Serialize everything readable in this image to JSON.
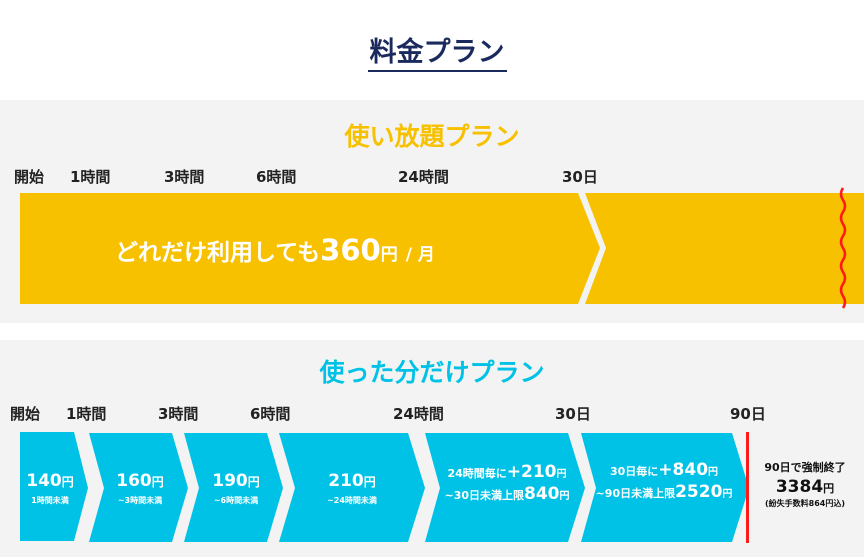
{
  "title": "料金プラン",
  "colors": {
    "navy": "#1b2a5c",
    "yellow": "#f7c100",
    "cyan": "#00c2e6",
    "red": "#ff1a1a",
    "bg": "#f3f3f3"
  },
  "unlimited": {
    "heading": "使い放題プラン",
    "timeline": [
      "開始",
      "1時間",
      "3時間",
      "6時間",
      "24時間",
      "30日"
    ],
    "text_main": "どれだけ利用しても",
    "price": "360",
    "yen": "円",
    "per": "/ 月"
  },
  "payg": {
    "heading": "使った分だけプラン",
    "timeline": [
      "開始",
      "1時間",
      "3時間",
      "6時間",
      "24時間",
      "30日",
      "90日"
    ],
    "steps": [
      {
        "price": "140",
        "yen": "円",
        "note": "1時間未満"
      },
      {
        "price": "160",
        "yen": "円",
        "note": "~3時間未満"
      },
      {
        "price": "190",
        "yen": "円",
        "note": "~6時間未満"
      },
      {
        "price": "210",
        "yen": "円",
        "note": "~24時間未満"
      },
      {
        "line1_pre": "24時間毎に",
        "line1_val": "+210",
        "line1_yen": "円",
        "line2_pre": "~30日未満上限",
        "line2_val": "840",
        "line2_yen": "円"
      },
      {
        "line1_pre": "30日毎に",
        "line1_val": "+840",
        "line1_yen": "円",
        "line2_pre": "~90日未満上限",
        "line2_val": "2520",
        "line2_yen": "円"
      }
    ],
    "end": {
      "label": "90日で強制終了",
      "price": "3384",
      "yen": "円",
      "note": "(紛失手数料864円込)"
    }
  }
}
